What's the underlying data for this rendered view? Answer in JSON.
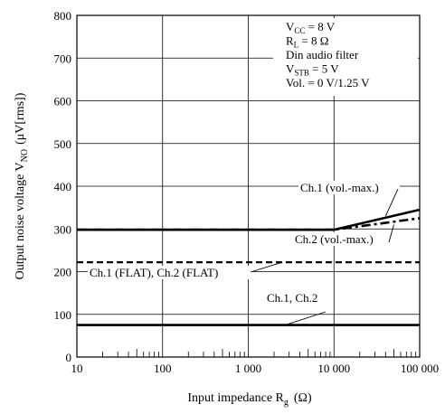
{
  "chart_data": {
    "type": "line",
    "xscale": "log",
    "xlim": [
      10,
      100000
    ],
    "ylim": [
      0,
      800
    ],
    "x_ticks": [
      10,
      100,
      1000,
      10000,
      100000
    ],
    "x_tick_labels": [
      "10",
      "100",
      "1 000",
      "10 000",
      "100 000"
    ],
    "y_ticks": [
      0,
      100,
      200,
      300,
      400,
      500,
      600,
      700,
      800
    ],
    "y_tick_labels": [
      "0",
      "100",
      "200",
      "300",
      "400",
      "500",
      "600",
      "700",
      "800"
    ],
    "xlabel": {
      "main": "Input impedance  R",
      "sub": "g",
      "unit": "(Ω)"
    },
    "ylabel": {
      "main": "Output noise voltage  V",
      "sub": "NO",
      "unit": "(μV[rms])"
    },
    "conditions": [
      {
        "main": "V",
        "sub": "CC",
        "rest": " = 8 V"
      },
      {
        "main": "R",
        "sub": "L",
        "rest": " = 8 Ω"
      },
      {
        "main": "Din audio filter",
        "sub": "",
        "rest": ""
      },
      {
        "main": "V",
        "sub": "STB",
        "rest": " = 5 V"
      },
      {
        "main": "Vol. = 0 V/1.25 V",
        "sub": "",
        "rest": ""
      }
    ],
    "grid": true,
    "series": [
      {
        "name": "Ch.1 (vol.-max.)",
        "style": "solid",
        "color": "#000000",
        "x": [
          10,
          10000,
          100000
        ],
        "y": [
          298,
          298,
          345
        ]
      },
      {
        "name": "Ch.2 (vol.-max.)",
        "style": "dashdot",
        "color": "#000000",
        "x": [
          10,
          10000,
          100000
        ],
        "y": [
          298,
          298,
          325
        ]
      },
      {
        "name": "Ch.1 (FLAT), Ch.2 (FLAT)",
        "style": "dashed",
        "color": "#000000",
        "x": [
          10,
          100000
        ],
        "y": [
          222,
          222
        ]
      },
      {
        "name": "Ch.1, Ch.2",
        "style": "solid",
        "color": "#000000",
        "x": [
          10,
          100000
        ],
        "y": [
          75,
          75
        ]
      }
    ],
    "callouts": [
      {
        "text": "Ch.1 (vol.-max.)",
        "points_to": [
          40000,
          330
        ]
      },
      {
        "text": "Ch.2 (vol.-max.)",
        "points_to": [
          50000,
          310
        ]
      },
      {
        "text": "Ch.1 (FLAT), Ch.2 (FLAT)",
        "points_to": [
          2500,
          222
        ]
      },
      {
        "text": "Ch.1, Ch.2",
        "points_to": [
          2700,
          75
        ]
      }
    ]
  }
}
